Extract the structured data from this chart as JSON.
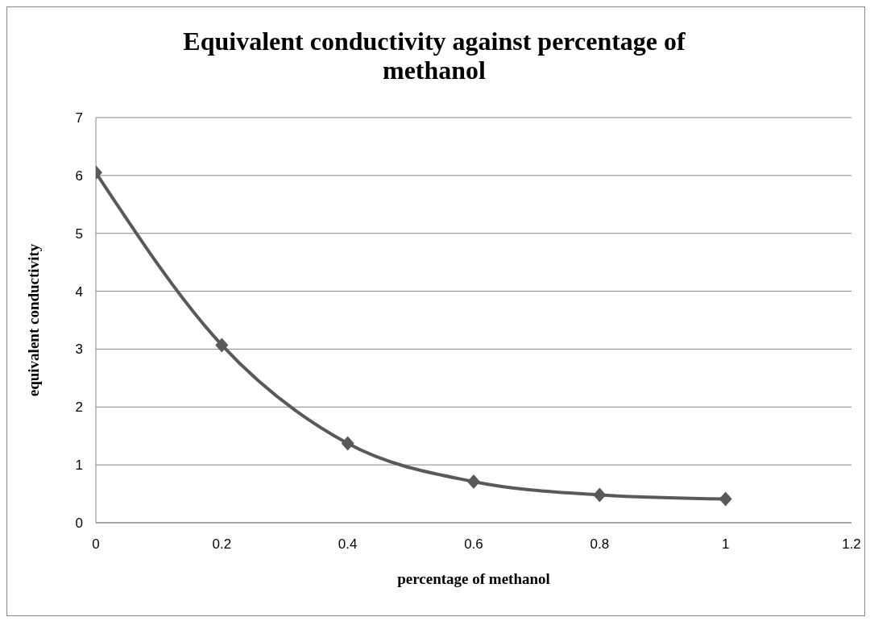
{
  "chart_data": {
    "type": "line",
    "title": "Equivalent conductivity against percentage of methanol",
    "xlabel": "percentage of methanol",
    "ylabel": "equivalent conductivity",
    "x": [
      0,
      0.2,
      0.4,
      0.6,
      0.8,
      1
    ],
    "values": [
      6.05,
      3.07,
      1.37,
      0.71,
      0.48,
      0.41
    ],
    "color": "#595959",
    "marker": "diamond",
    "line_style": "solid",
    "xlim": [
      0,
      1.2
    ],
    "xticks": [
      0,
      0.2,
      0.4,
      0.6,
      0.8,
      1,
      1.2
    ],
    "ylim": [
      0,
      7
    ],
    "yticks": [
      0,
      1,
      2,
      3,
      4,
      5,
      6,
      7
    ],
    "grid": "y"
  }
}
